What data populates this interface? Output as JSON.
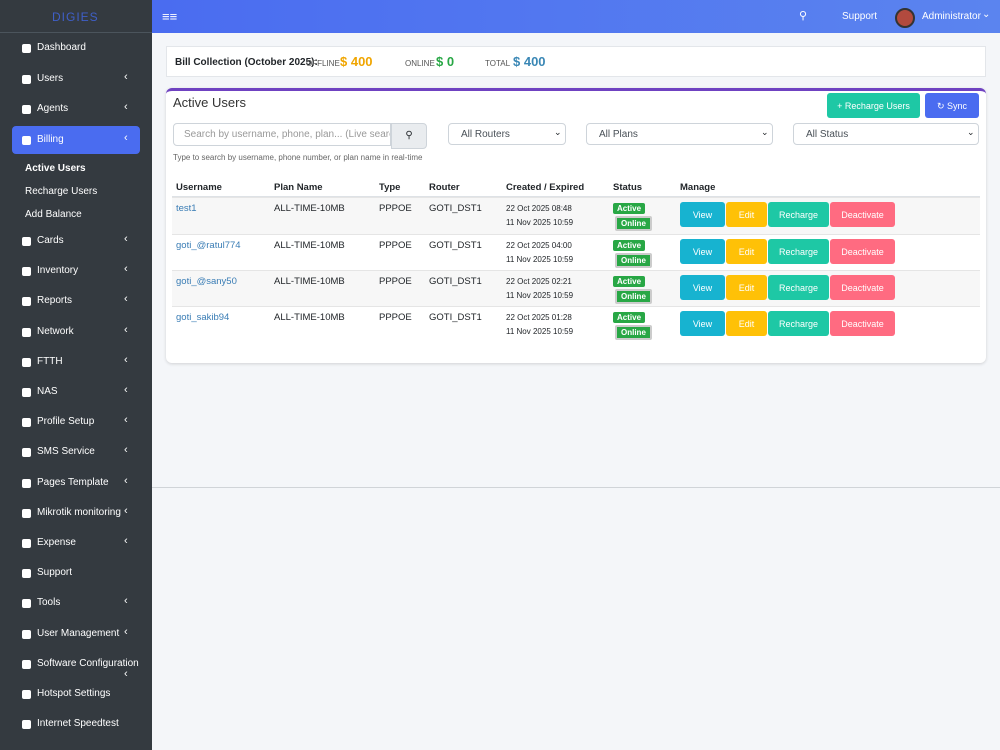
{
  "topbar": {
    "brand": "DIGIES",
    "support": "Support",
    "user": "Administrator"
  },
  "sidebar": {
    "items": [
      {
        "label": "Dashboard",
        "submenu": false
      },
      {
        "label": "Users",
        "submenu": true
      },
      {
        "label": "Agents",
        "submenu": true
      },
      {
        "label": "Billing",
        "submenu": true
      },
      {
        "label": "Cards",
        "submenu": true
      },
      {
        "label": "Inventory",
        "submenu": true
      },
      {
        "label": "Reports",
        "submenu": true
      },
      {
        "label": "Network",
        "submenu": true
      },
      {
        "label": "FTTH",
        "submenu": true
      },
      {
        "label": "NAS",
        "submenu": true
      },
      {
        "label": "Profile Setup",
        "submenu": true
      },
      {
        "label": "SMS Service",
        "submenu": true
      },
      {
        "label": "Pages Template",
        "submenu": true
      },
      {
        "label": "Mikrotik monitoring",
        "submenu": true
      },
      {
        "label": "Expense",
        "submenu": true
      },
      {
        "label": "Support",
        "submenu": false
      },
      {
        "label": "Tools",
        "submenu": true
      },
      {
        "label": "User Management",
        "submenu": true
      },
      {
        "label": "Software Configuration",
        "submenu": true
      },
      {
        "label": "Hotspot Settings",
        "submenu": false
      },
      {
        "label": "Internet Speedtest",
        "submenu": false
      }
    ],
    "billing_sub": [
      "Active Users",
      "Recharge Users",
      "Add Balance"
    ]
  },
  "bill": {
    "title": "Bill Collection (October 2025):",
    "offline_label": "OFFLINE",
    "offline": "$ 400",
    "online_label": "ONLINE",
    "online": "$ 0",
    "total_label": "TOTAL",
    "total": "$ 400"
  },
  "panel": {
    "title": "Active Users",
    "recharge_button": "Recharge Users",
    "sync_button": "Sync",
    "search_placeholder": "Search by username, phone, plan... (Live search",
    "search_hint": "Type to search by username, phone number, or plan name in real-time",
    "filters": [
      "All Routers",
      "All Plans",
      "All Status"
    ]
  },
  "table": {
    "columns": [
      "Username",
      "Plan Name",
      "Type",
      "Router",
      "Created / Expired",
      "Status",
      "Manage"
    ],
    "rows": [
      {
        "username": "test1",
        "plan": "ALL-TIME-10MB",
        "type": "PPPOE",
        "router": "GOTI_DST1",
        "created": "22 Oct 2025 08:48",
        "expired": "11 Nov 2025 10:59",
        "status": "Active",
        "connection": "Online"
      },
      {
        "username": "goti_@ratul774",
        "plan": "ALL-TIME-10MB",
        "type": "PPPOE",
        "router": "GOTI_DST1",
        "created": "22 Oct 2025 04:00",
        "expired": "11 Nov 2025 10:59",
        "status": "Active",
        "connection": "Online"
      },
      {
        "username": "goti_@sany50",
        "plan": "ALL-TIME-10MB",
        "type": "PPPOE",
        "router": "GOTI_DST1",
        "created": "22 Oct 2025 02:21",
        "expired": "11 Nov 2025 10:59",
        "status": "Active",
        "connection": "Online"
      },
      {
        "username": "goti_sakib94",
        "plan": "ALL-TIME-10MB",
        "type": "PPPOE",
        "router": "GOTI_DST1",
        "created": "22 Oct 2025 01:28",
        "expired": "11 Nov 2025 10:59",
        "status": "Active",
        "connection": "Online"
      }
    ],
    "actions": [
      "View",
      "Edit",
      "Recharge",
      "Deactivate"
    ]
  }
}
